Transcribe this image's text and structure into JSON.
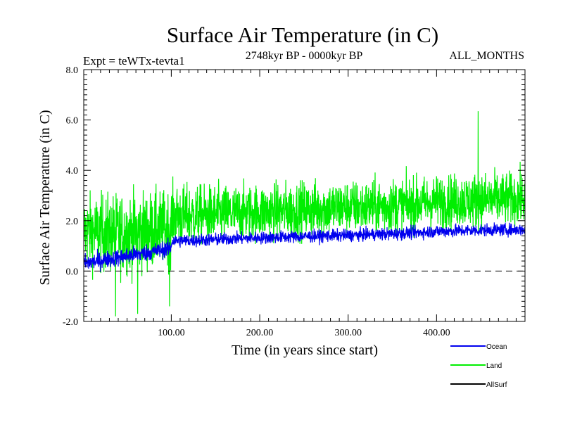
{
  "header": {
    "title": "Surface Air Temperature (in C)",
    "experiment": "Expt = teWTx-tevta1",
    "period": "2748kyr BP - 0000kyr BP",
    "months": "ALL_MONTHS"
  },
  "chart_data": {
    "type": "line",
    "title": "Surface Air Temperature (in C)",
    "xlabel": "Time (in years since start)",
    "ylabel": "Surface Air Temperature (in C)",
    "xlim": [
      1,
      500
    ],
    "ylim": [
      -2.0,
      8.0
    ],
    "x_ticks": [
      100,
      200,
      300,
      400
    ],
    "x_tick_labels": [
      "100.00",
      "200.00",
      "300.00",
      "400.00"
    ],
    "y_ticks": [
      -2.0,
      0.0,
      2.0,
      4.0,
      6.0,
      8.0
    ],
    "y_tick_labels": [
      "-2.0",
      "0.0",
      "2.0",
      "4.0",
      "6.0",
      "8.0"
    ],
    "reference_line": {
      "y": 0.0,
      "style": "dashed"
    },
    "legend_position": "bottom-right",
    "series": [
      {
        "name": "Land",
        "color": "#00ee00",
        "x": [
          1,
          25,
          50,
          75,
          99,
          101,
          125,
          150,
          175,
          200,
          225,
          250,
          275,
          300,
          325,
          350,
          375,
          400,
          425,
          450,
          475,
          500
        ],
        "mean": [
          1.6,
          1.5,
          1.5,
          1.6,
          1.7,
          2.2,
          2.2,
          2.25,
          2.3,
          2.35,
          2.4,
          2.45,
          2.5,
          2.55,
          2.55,
          2.6,
          2.65,
          2.75,
          2.8,
          2.8,
          2.85,
          2.9
        ],
        "spread": [
          2.3,
          2.5,
          2.6,
          2.5,
          2.4,
          2.0,
          1.9,
          1.9,
          1.8,
          1.8,
          1.8,
          1.8,
          1.8,
          1.7,
          1.7,
          1.8,
          1.7,
          1.7,
          1.7,
          1.8,
          1.7,
          1.7
        ],
        "peaks": [
          {
            "x": 447,
            "y": 6.35
          },
          {
            "x": 37,
            "y": -1.8
          },
          {
            "x": 62,
            "y": -1.7
          },
          {
            "x": 98,
            "y": -1.4
          }
        ]
      },
      {
        "name": "Ocean",
        "color": "#0000ee",
        "x": [
          1,
          25,
          50,
          75,
          99,
          101,
          125,
          150,
          175,
          200,
          225,
          250,
          275,
          300,
          325,
          350,
          375,
          400,
          425,
          450,
          475,
          500
        ],
        "mean": [
          0.3,
          0.45,
          0.6,
          0.75,
          0.9,
          1.2,
          1.22,
          1.25,
          1.3,
          1.32,
          1.35,
          1.38,
          1.4,
          1.42,
          1.45,
          1.48,
          1.52,
          1.58,
          1.6,
          1.62,
          1.64,
          1.65
        ],
        "spread": [
          0.6,
          0.55,
          0.55,
          0.55,
          0.55,
          0.45,
          0.42,
          0.42,
          0.4,
          0.4,
          0.4,
          0.4,
          0.4,
          0.4,
          0.4,
          0.42,
          0.4,
          0.42,
          0.42,
          0.4,
          0.4,
          0.4
        ]
      },
      {
        "name": "AllSurf",
        "color": "#000000",
        "x": [],
        "mean": [],
        "spread": []
      }
    ],
    "legend": [
      "Ocean",
      "Land",
      "AllSurf"
    ]
  }
}
